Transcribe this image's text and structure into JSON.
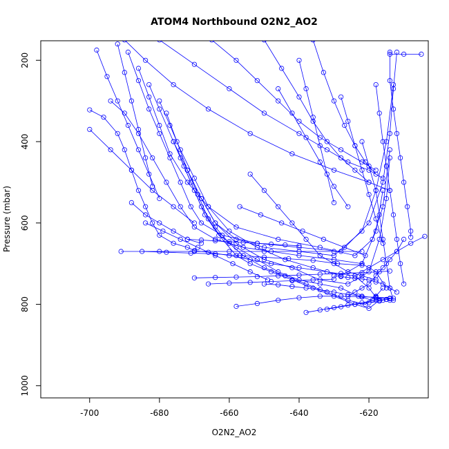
{
  "chart_data": {
    "type": "scatter",
    "title": "ATOM4 Northbound O2N2_AO2",
    "xlabel": "O2N2_AO2",
    "ylabel": "Pressure (mbar)",
    "xlim": [
      -714,
      -603
    ],
    "ylim": [
      1030,
      152
    ],
    "y_reversed": true,
    "grid": false,
    "series_color": "#0000ff",
    "marker": "open-circle",
    "x_ticks": [
      -700,
      -680,
      -660,
      -640,
      -620
    ],
    "y_ticks": [
      200,
      400,
      600,
      800,
      1000
    ],
    "series": [
      {
        "x": [
          -700,
          -696,
          -692,
          -690,
          -688,
          -686,
          -684,
          -682,
          -680,
          -676,
          -672,
          -670,
          -666,
          -660,
          -654,
          -648,
          -640,
          -632,
          -624,
          -620,
          -618,
          -616
        ],
        "y": [
          322,
          340,
          380,
          420,
          470,
          520,
          560,
          600,
          630,
          650,
          660,
          668,
          672,
          680,
          690,
          700,
          710,
          720,
          730,
          760,
          782,
          790
        ]
      },
      {
        "x": [
          -694,
          -690,
          -686,
          -682,
          -678,
          -674,
          -670,
          -664,
          -656,
          -648,
          -640,
          -630,
          -622,
          -618,
          -615
        ],
        "y": [
          300,
          330,
          380,
          440,
          500,
          560,
          610,
          640,
          660,
          670,
          680,
          690,
          700,
          720,
          760
        ]
      },
      {
        "x": [
          -689,
          -686,
          -683,
          -680,
          -677,
          -674,
          -671,
          -668,
          -662,
          -652,
          -640,
          -628,
          -620,
          -616,
          -614,
          -613,
          -612
        ],
        "y": [
          180,
          250,
          320,
          380,
          440,
          500,
          560,
          600,
          630,
          650,
          660,
          670,
          600,
          500,
          380,
          270,
          180
        ]
      },
      {
        "x": [
          -686,
          -683,
          -680,
          -677,
          -672,
          -666,
          -658,
          -646,
          -634,
          -624,
          -619,
          -616,
          -614
        ],
        "y": [
          220,
          290,
          360,
          430,
          500,
          560,
          610,
          640,
          660,
          680,
          640,
          560,
          420
        ]
      },
      {
        "x": [
          -683,
          -680,
          -676,
          -672,
          -668,
          -664,
          -658,
          -650,
          -640,
          -630,
          -622,
          -618,
          -615,
          -613
        ],
        "y": [
          260,
          320,
          400,
          470,
          540,
          600,
          640,
          660,
          670,
          680,
          620,
          520,
          400,
          260
        ]
      },
      {
        "x": [
          -680,
          -677,
          -674,
          -670,
          -666,
          -660,
          -652,
          -644,
          -636,
          -628,
          -622,
          -618,
          -616
        ],
        "y": [
          300,
          360,
          420,
          490,
          560,
          620,
          660,
          690,
          710,
          730,
          700,
          620,
          520
        ]
      },
      {
        "x": [
          -678,
          -675,
          -672,
          -668,
          -664,
          -658,
          -650,
          -642,
          -634,
          -626,
          -620,
          -617,
          -615,
          -614
        ],
        "y": [
          330,
          400,
          470,
          540,
          600,
          650,
          690,
          710,
          740,
          750,
          720,
          640,
          540,
          440
        ]
      },
      {
        "x": [
          -676,
          -673,
          -670,
          -667,
          -663,
          -658,
          -652,
          -646,
          -640,
          -634,
          -628,
          -623,
          -619
        ],
        "y": [
          400,
          460,
          520,
          580,
          630,
          660,
          690,
          720,
          740,
          750,
          760,
          780,
          790
        ]
      },
      {
        "x": [
          -674,
          -671,
          -668,
          -664,
          -660,
          -656,
          -650,
          -644,
          -638,
          -632,
          -626,
          -621,
          -618,
          -616
        ],
        "y": [
          440,
          500,
          560,
          610,
          650,
          680,
          710,
          730,
          750,
          770,
          790,
          800,
          780,
          760
        ]
      },
      {
        "x": [
          -672,
          -669,
          -666,
          -662,
          -658,
          -654,
          -648,
          -642,
          -636,
          -630,
          -624,
          -620,
          -617
        ],
        "y": [
          470,
          530,
          590,
          640,
          680,
          700,
          720,
          740,
          760,
          780,
          800,
          810,
          790
        ]
      },
      {
        "x": [
          -691,
          -680,
          -670,
          -660,
          -650,
          -640,
          -630,
          -622
        ],
        "y": [
          670,
          670,
          670,
          670,
          670,
          670,
          670,
          670
        ]
      },
      {
        "x": [
          -685,
          -678,
          -671,
          -664,
          -657,
          -650,
          -643,
          -636,
          -629,
          -622
        ],
        "y": [
          670,
          672,
          674,
          676,
          680,
          684,
          688,
          692,
          700,
          704
        ]
      },
      {
        "x": [
          -672,
          -668,
          -664,
          -660,
          -656,
          -652,
          -648,
          -644,
          -640
        ],
        "y": [
          640,
          642,
          644,
          646,
          648,
          650,
          652,
          654,
          656
        ]
      },
      {
        "x": [
          -670,
          -664,
          -658,
          -652,
          -646,
          -640,
          -634,
          -628,
          -622,
          -617,
          -614
        ],
        "y": [
          735,
          734,
          733,
          732,
          730,
          728,
          726,
          724,
          722,
          720,
          718
        ]
      },
      {
        "x": [
          -658,
          -652,
          -646,
          -640,
          -634,
          -628,
          -622,
          -618,
          -614
        ],
        "y": [
          805,
          798,
          790,
          784,
          780,
          780,
          782,
          782,
          785
        ]
      },
      {
        "x": [
          -638,
          -634,
          -630,
          -626,
          -622,
          -618,
          -615,
          -613
        ],
        "y": [
          820,
          814,
          808,
          802,
          796,
          790,
          788,
          785
        ]
      },
      {
        "x": [
          -632,
          -628,
          -624,
          -620,
          -617,
          -615,
          -614
        ],
        "y": [
          812,
          806,
          800,
          796,
          792,
          788,
          790
        ]
      },
      {
        "x": [
          -690,
          -684,
          -676,
          -666,
          -654,
          -642,
          -630,
          -620,
          -614
        ],
        "y": [
          150,
          200,
          260,
          320,
          380,
          430,
          470,
          500,
          520
        ]
      },
      {
        "x": [
          -680,
          -670,
          -660,
          -650,
          -640,
          -632,
          -626,
          -620,
          -616
        ],
        "y": [
          150,
          210,
          270,
          330,
          380,
          420,
          450,
          470,
          490
        ]
      },
      {
        "x": [
          -665,
          -658,
          -652,
          -646,
          -640,
          -634,
          -628,
          -622,
          -618
        ],
        "y": [
          150,
          200,
          250,
          300,
          350,
          390,
          420,
          450,
          470
        ]
      },
      {
        "x": [
          -650,
          -645,
          -640,
          -636,
          -632,
          -628,
          -624,
          -620
        ],
        "y": [
          150,
          220,
          290,
          350,
          400,
          440,
          470,
          500
        ]
      },
      {
        "x": [
          -636,
          -633,
          -630,
          -627,
          -624,
          -621,
          -618
        ],
        "y": [
          150,
          230,
          300,
          360,
          410,
          450,
          480
        ]
      },
      {
        "x": [
          -614,
          -614,
          -613,
          -612,
          -611,
          -610,
          -609,
          -608,
          -608
        ],
        "y": [
          180,
          250,
          320,
          380,
          440,
          500,
          560,
          620,
          635
        ]
      },
      {
        "x": [
          -618,
          -617,
          -616,
          -615,
          -614,
          -613,
          -612,
          -611,
          -610
        ],
        "y": [
          260,
          330,
          400,
          460,
          520,
          580,
          640,
          700,
          750
        ]
      },
      {
        "x": [
          -622,
          -620,
          -618,
          -617,
          -616,
          -615,
          -614,
          -613
        ],
        "y": [
          400,
          460,
          520,
          580,
          640,
          700,
          760,
          790
        ]
      },
      {
        "x": [
          -614,
          -610,
          -605
        ],
        "y": [
          185,
          185,
          185
        ]
      },
      {
        "x": [
          -610,
          -612,
          -614,
          -616,
          -618,
          -620,
          -622,
          -624,
          -626
        ],
        "y": [
          640,
          670,
          690,
          710,
          730,
          750,
          760,
          770,
          780
        ]
      },
      {
        "x": [
          -700,
          -694,
          -688,
          -682,
          -676,
          -670
        ],
        "y": [
          370,
          420,
          470,
          520,
          560,
          600
        ]
      },
      {
        "x": [
          -688,
          -684,
          -680,
          -676,
          -672,
          -668
        ],
        "y": [
          550,
          580,
          600,
          620,
          640,
          650
        ]
      },
      {
        "x": [
          -684,
          -679,
          -674,
          -669,
          -664,
          -659,
          -654,
          -649
        ],
        "y": [
          600,
          620,
          640,
          660,
          680,
          700,
          720,
          740
        ]
      },
      {
        "x": [
          -657,
          -651,
          -645,
          -639,
          -633,
          -627,
          -621
        ],
        "y": [
          560,
          580,
          600,
          620,
          640,
          660,
          680
        ]
      },
      {
        "x": [
          -654,
          -650,
          -646,
          -642,
          -638,
          -634,
          -630,
          -626,
          -622,
          -618
        ],
        "y": [
          480,
          520,
          560,
          600,
          640,
          680,
          700,
          720,
          730,
          740
        ]
      },
      {
        "x": [
          -646,
          -642,
          -638,
          -634,
          -630,
          -626
        ],
        "y": [
          270,
          330,
          390,
          450,
          510,
          560
        ]
      },
      {
        "x": [
          -640,
          -638,
          -636,
          -634,
          -632,
          -630
        ],
        "y": [
          200,
          270,
          340,
          410,
          480,
          550
        ]
      },
      {
        "x": [
          -628,
          -626,
          -624,
          -622,
          -620,
          -618,
          -616
        ],
        "y": [
          290,
          350,
          410,
          470,
          530,
          590,
          650
        ]
      },
      {
        "x": [
          -604,
          -608,
          -612,
          -616,
          -620,
          -624
        ],
        "y": [
          633,
          650,
          670,
          690,
          710,
          730
        ]
      },
      {
        "x": [
          -612,
          -614,
          -616,
          -618,
          -620,
          -622,
          -624,
          -626,
          -628,
          -630
        ],
        "y": [
          770,
          760,
          750,
          745,
          740,
          738,
          736,
          734,
          732,
          730
        ]
      },
      {
        "x": [
          -666,
          -660,
          -654,
          -648,
          -642,
          -636,
          -630
        ],
        "y": [
          750,
          748,
          746,
          744,
          742,
          740,
          738
        ]
      },
      {
        "x": [
          -650,
          -646,
          -642,
          -638,
          -634,
          -630,
          -626,
          -622,
          -618,
          -614
        ],
        "y": [
          750,
          752,
          756,
          760,
          764,
          770,
          776,
          780,
          784,
          786
        ]
      },
      {
        "x": [
          -692,
          -690,
          -688,
          -686,
          -684,
          -682
        ],
        "y": [
          160,
          230,
          300,
          370,
          440,
          510
        ]
      },
      {
        "x": [
          -698,
          -695,
          -692,
          -689,
          -686,
          -683,
          -680
        ],
        "y": [
          175,
          240,
          300,
          360,
          420,
          480,
          540
        ]
      }
    ]
  }
}
